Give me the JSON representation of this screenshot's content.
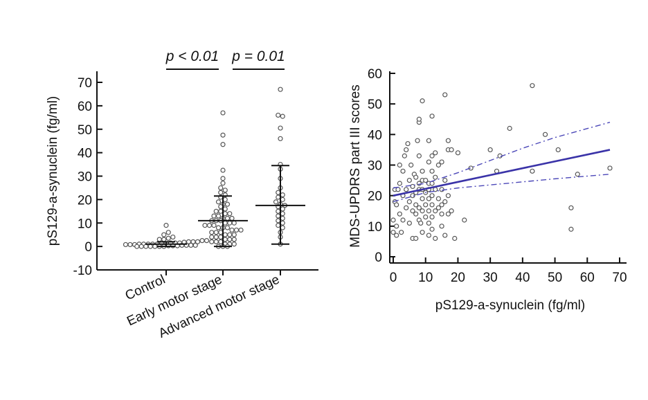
{
  "chart_data": [
    {
      "type": "scatter",
      "subtype": "dot-strip-plot with median and interquartile range",
      "ylabel": "pS129-a-synuclein (fg/ml)",
      "ylim": [
        -10,
        70
      ],
      "yticks": [
        -10,
        0,
        10,
        20,
        30,
        40,
        50,
        60,
        70
      ],
      "categories": [
        "Control",
        "Early motor stage",
        "Advanced motor stage"
      ],
      "summary": [
        {
          "category": "Control",
          "median": 1,
          "low": 0,
          "high": 2
        },
        {
          "category": "Early motor stage",
          "median": 11,
          "low": 0,
          "high": 21.5
        },
        {
          "category": "Advanced motor stage",
          "median": 17.5,
          "low": 1,
          "high": 34.5
        }
      ],
      "groups": [
        {
          "category": "Control",
          "values": [
            0,
            0,
            0,
            0,
            0,
            0,
            0,
            0.3,
            0.3,
            0.3,
            0.5,
            0.5,
            0.5,
            0.5,
            0.8,
            0.8,
            0.8,
            1,
            1,
            1,
            1,
            1,
            1.2,
            1.2,
            1.5,
            1.5,
            1.5,
            1.8,
            2,
            2,
            2,
            2.5,
            2.5,
            3,
            3,
            3.5,
            4,
            5,
            6,
            9
          ]
        },
        {
          "category": "Early motor stage",
          "values": [
            57,
            47.5,
            43.5,
            32.5,
            29,
            27,
            25,
            24,
            23,
            22,
            21,
            20,
            19,
            18,
            18,
            17,
            16,
            15,
            15,
            14,
            14,
            13,
            13,
            12,
            12,
            12,
            11,
            11,
            11,
            10,
            10,
            10,
            9,
            9,
            9,
            8,
            8,
            8,
            7,
            7,
            7,
            6,
            6,
            6,
            5,
            5,
            5,
            4,
            4,
            4,
            3,
            3,
            3,
            2,
            2,
            2,
            1,
            1,
            1,
            0,
            0,
            0
          ]
        },
        {
          "category": "Advanced motor stage",
          "values": [
            67,
            56,
            55.5,
            50.5,
            46,
            35,
            33,
            29,
            25,
            23,
            22,
            21,
            20,
            19,
            18,
            17.5,
            17,
            16,
            15,
            14,
            13,
            12,
            11,
            10,
            9,
            8,
            6,
            4,
            1
          ]
        }
      ],
      "comparisons": [
        {
          "from": "Control",
          "to": "Early motor stage",
          "label": "p < 0.01"
        },
        {
          "from": "Early motor stage",
          "to": "Advanced motor stage",
          "label": "p = 0.01"
        }
      ]
    },
    {
      "type": "scatter",
      "xlabel": "pS129-a-synuclein (fg/ml)",
      "ylabel": "MDS-UPDRS part III scores",
      "xlim": [
        0,
        70
      ],
      "ylim": [
        0,
        60
      ],
      "xticks": [
        0,
        10,
        20,
        30,
        40,
        50,
        60,
        70
      ],
      "yticks": [
        0,
        10,
        20,
        30,
        40,
        50,
        60
      ],
      "points": [
        [
          0,
          8
        ],
        [
          0,
          12
        ],
        [
          0.5,
          18
        ],
        [
          0.5,
          22
        ],
        [
          1,
          7
        ],
        [
          1,
          10
        ],
        [
          1,
          17
        ],
        [
          1.5,
          22
        ],
        [
          2,
          14
        ],
        [
          2,
          24
        ],
        [
          2,
          30
        ],
        [
          2.5,
          8
        ],
        [
          3,
          12
        ],
        [
          3,
          20
        ],
        [
          3,
          28
        ],
        [
          3.5,
          33
        ],
        [
          4,
          16
        ],
        [
          4,
          22
        ],
        [
          4,
          35
        ],
        [
          4.5,
          37
        ],
        [
          5,
          11
        ],
        [
          5,
          18
        ],
        [
          5,
          25
        ],
        [
          5.5,
          30
        ],
        [
          6,
          6
        ],
        [
          6,
          15
        ],
        [
          6,
          20
        ],
        [
          6,
          23
        ],
        [
          6.5,
          27
        ],
        [
          7,
          6
        ],
        [
          7,
          14
        ],
        [
          7,
          17
        ],
        [
          7,
          21
        ],
        [
          7,
          26
        ],
        [
          7.5,
          38
        ],
        [
          8,
          12
        ],
        [
          8,
          16
        ],
        [
          8,
          22
        ],
        [
          8,
          24
        ],
        [
          8,
          33
        ],
        [
          8,
          44
        ],
        [
          8,
          45
        ],
        [
          8.5,
          11
        ],
        [
          9,
          8
        ],
        [
          9,
          15
        ],
        [
          9,
          19
        ],
        [
          9,
          22
        ],
        [
          9,
          25
        ],
        [
          9,
          28
        ],
        [
          9,
          51
        ],
        [
          10,
          13
        ],
        [
          10,
          17
        ],
        [
          10,
          21
        ],
        [
          10,
          25
        ],
        [
          11,
          7
        ],
        [
          11,
          11
        ],
        [
          11,
          15
        ],
        [
          11,
          19
        ],
        [
          11,
          22
        ],
        [
          11,
          24
        ],
        [
          11,
          31
        ],
        [
          11,
          38
        ],
        [
          12,
          9
        ],
        [
          12,
          13
        ],
        [
          12,
          17
        ],
        [
          12,
          20
        ],
        [
          12,
          24
        ],
        [
          12,
          28
        ],
        [
          12,
          33
        ],
        [
          12,
          46
        ],
        [
          13,
          6
        ],
        [
          13,
          15
        ],
        [
          13,
          22
        ],
        [
          13,
          26
        ],
        [
          13,
          34
        ],
        [
          14,
          16
        ],
        [
          14,
          19
        ],
        [
          14,
          30
        ],
        [
          15,
          10
        ],
        [
          15,
          14
        ],
        [
          15,
          17
        ],
        [
          15,
          22
        ],
        [
          15,
          31
        ],
        [
          16,
          7
        ],
        [
          16,
          18
        ],
        [
          16,
          25
        ],
        [
          16,
          53
        ],
        [
          17,
          14
        ],
        [
          17,
          20
        ],
        [
          17,
          35
        ],
        [
          17,
          38
        ],
        [
          18,
          15
        ],
        [
          18,
          35
        ],
        [
          19,
          6
        ],
        [
          20,
          34
        ],
        [
          22,
          12
        ],
        [
          24,
          29
        ],
        [
          30,
          35
        ],
        [
          32,
          28
        ],
        [
          33,
          33
        ],
        [
          36,
          42
        ],
        [
          43,
          56
        ],
        [
          43,
          28
        ],
        [
          47,
          40
        ],
        [
          51,
          35
        ],
        [
          55,
          16
        ],
        [
          55,
          9
        ],
        [
          57,
          27
        ],
        [
          67,
          29
        ]
      ],
      "regression": {
        "x": [
          0,
          67
        ],
        "y": [
          20,
          35
        ]
      },
      "ci_lower": {
        "x": [
          0,
          10,
          20,
          30,
          40,
          50,
          67
        ],
        "y": [
          18,
          21,
          22.5,
          23.5,
          24.5,
          25.5,
          27
        ]
      },
      "ci_upper": {
        "x": [
          0,
          10,
          20,
          30,
          40,
          50,
          67
        ],
        "y": [
          22.5,
          24,
          27.5,
          31.5,
          35.5,
          39,
          44
        ]
      }
    }
  ]
}
